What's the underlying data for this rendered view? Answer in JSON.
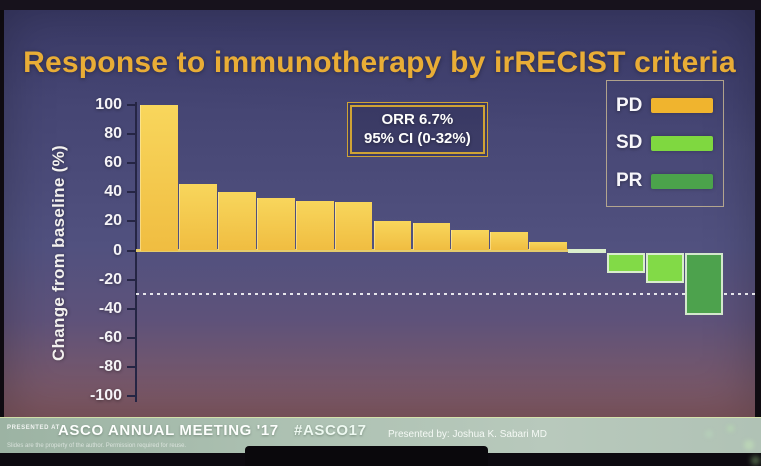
{
  "chart_data": {
    "type": "bar",
    "title": "Response to immunotherapy by irRECIST criteria",
    "ylabel": "Change from baseline (%)",
    "ylim": [
      -100,
      100
    ],
    "yticks": [
      100,
      80,
      60,
      40,
      20,
      0,
      -20,
      -40,
      -60,
      -80,
      -100
    ],
    "reference_line": -30,
    "grid": false,
    "legend_position": "top-right",
    "values": [
      100,
      46,
      40,
      36,
      34,
      33,
      20,
      19,
      14,
      13,
      6,
      0.5,
      -14,
      -21,
      -43
    ],
    "groups": [
      "PD",
      "PD",
      "PD",
      "PD",
      "PD",
      "PD",
      "PD",
      "PD",
      "PD",
      "PD",
      "PD",
      "SD",
      "SD",
      "SD",
      "PR"
    ],
    "legend": [
      {
        "label": "PD",
        "color": "#f0b42e"
      },
      {
        "label": "SD",
        "color": "#7fd840"
      },
      {
        "label": "PR",
        "color": "#4ba34b"
      }
    ],
    "annotation": {
      "line1": "ORR 6.7%",
      "line2": "95% CI (0-32%)"
    }
  },
  "slide": {
    "title_color": "#e9ad36",
    "background_color": "#4a4a78",
    "baseline_color": "#ecd26a"
  },
  "footer": {
    "presented_at_label": "PRESENTED AT",
    "meeting": "ASCO ANNUAL MEETING '17",
    "hashtag": "#ASCO17",
    "presented_by": "Presented by: Joshua K. Sabari MD",
    "disclaimer": "Slides are the property of the author. Permission required for reuse."
  }
}
